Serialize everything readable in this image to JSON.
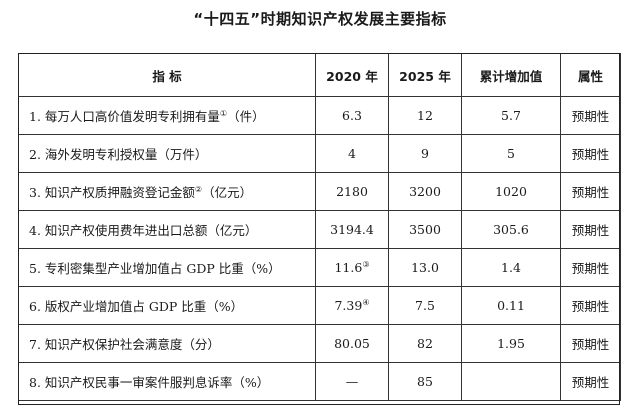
{
  "title": "“十四五”时期知识产权发展主要指标",
  "table": {
    "headers": {
      "indicator": "指    标",
      "y2020": "2020 年",
      "y2025": "2025 年",
      "accumulated": "累计增加值",
      "attribute": "属性"
    },
    "rows": [
      {
        "name": "1. 每万人口高价值发明专利拥有量",
        "note": "①",
        "unit": "（件）",
        "y2020": "6.3",
        "y2025": "12",
        "acc": "5.7",
        "attr": "预期性"
      },
      {
        "name": "2. 海外发明专利授权量（万件）",
        "note": "",
        "unit": "",
        "y2020": "4",
        "y2025": "9",
        "acc": "5",
        "attr": "预期性"
      },
      {
        "name": "3. 知识产权质押融资登记金额",
        "note": "②",
        "unit": "（亿元）",
        "y2020": "2180",
        "y2025": "3200",
        "acc": "1020",
        "attr": "预期性"
      },
      {
        "name": "4. 知识产权使用费年进出口总额（亿元）",
        "note": "",
        "unit": "",
        "y2020": "3194.4",
        "y2025": "3500",
        "acc": "305.6",
        "attr": "预期性"
      },
      {
        "name": "5. 专利密集型产业增加值占 GDP 比重（%）",
        "note": "",
        "unit": "",
        "y2020": "11.6",
        "y2020_note": "③",
        "y2025": "13.0",
        "acc": "1.4",
        "attr": "预期性"
      },
      {
        "name": "6. 版权产业增加值占 GDP 比重（%）",
        "note": "",
        "unit": "",
        "y2020": "7.39",
        "y2020_note": "④",
        "y2025": "7.5",
        "acc": "0.11",
        "attr": "预期性"
      },
      {
        "name": "7. 知识产权保护社会满意度（分）",
        "note": "",
        "unit": "",
        "y2020": "80.05",
        "y2025": "82",
        "acc": "1.95",
        "attr": "预期性"
      },
      {
        "name": "8. 知识产权民事一审案件服判息诉率（%）",
        "note": "",
        "unit": "",
        "y2020": "—",
        "y2025": "85",
        "acc": "",
        "attr": "预期性"
      }
    ]
  }
}
